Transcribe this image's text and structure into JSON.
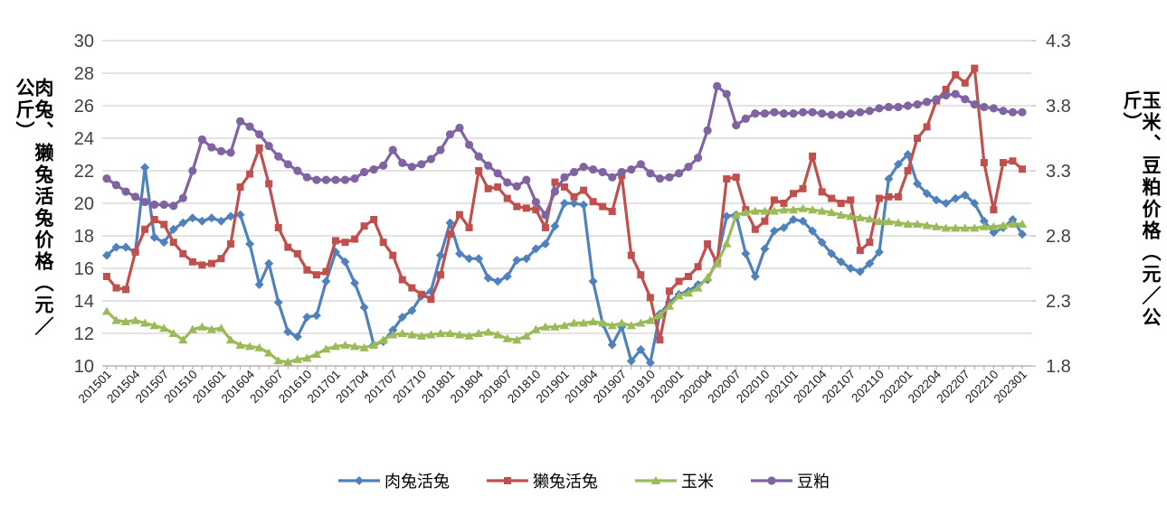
{
  "chart_data": {
    "type": "line",
    "title": "",
    "grid": true,
    "legend_position": "bottom",
    "x_tick_labels": [
      "201501",
      "201504",
      "201507",
      "201510",
      "201601",
      "201604",
      "201607",
      "201610",
      "201701",
      "201704",
      "201707",
      "201710",
      "201801",
      "201804",
      "201807",
      "201810",
      "201901",
      "201904",
      "201907",
      "201910",
      "202001",
      "202004",
      "202007",
      "202010",
      "202101",
      "202104",
      "202107",
      "202110",
      "202201",
      "202204",
      "202207",
      "202210",
      "202301"
    ],
    "left_axis": {
      "label": "肉兔、獭兔活兔价格（元／公斤）",
      "range": [
        10,
        30
      ],
      "ticks": [
        10,
        12,
        14,
        16,
        18,
        20,
        22,
        24,
        26,
        28,
        30
      ]
    },
    "right_axis": {
      "label": "玉米、豆粕价格（元／公斤）",
      "range": [
        1.8,
        4.3
      ],
      "ticks": [
        1.8,
        2.3,
        2.8,
        3.3,
        3.8,
        4.3
      ]
    },
    "colors": {
      "meat_rabbit": "#4F81BD",
      "rex_rabbit": "#C0504D",
      "corn": "#9BBB59",
      "soybean_meal": "#8064A2",
      "gridline": "#D2D2D2",
      "axis_line": "#A6A6A6",
      "tick_text": "#404040"
    },
    "series": [
      {
        "name": "肉兔活兔",
        "axis": "left",
        "color": "#4F81BD",
        "marker": "diamond",
        "values": [
          16.8,
          17.3,
          17.3,
          17.0,
          22.2,
          17.9,
          17.6,
          18.4,
          18.8,
          19.1,
          18.9,
          19.1,
          18.9,
          19.2,
          19.3,
          17.5,
          15.0,
          16.3,
          13.9,
          12.1,
          11.8,
          13.0,
          13.1,
          15.2,
          17.0,
          16.4,
          15.1,
          13.6,
          11.3,
          11.5,
          12.2,
          13.0,
          13.4,
          14.3,
          14.6,
          16.8,
          18.8,
          16.9,
          16.6,
          16.6,
          15.4,
          15.2,
          15.5,
          16.5,
          16.6,
          17.2,
          17.5,
          18.6,
          20.0,
          20.0,
          19.9,
          15.2,
          12.6,
          11.3,
          12.4,
          10.3,
          11.0,
          10.2,
          13.2,
          13.9,
          14.4,
          14.6,
          15.0,
          15.3,
          16.5,
          19.2,
          19.3,
          16.9,
          15.5,
          17.2,
          18.3,
          18.5,
          19.0,
          18.9,
          18.3,
          17.6,
          16.9,
          16.4,
          16.0,
          15.8,
          16.3,
          17.0,
          21.5,
          22.4,
          23.0,
          21.2,
          20.6,
          20.2,
          20.0,
          20.3,
          20.5,
          20.0,
          18.9,
          18.2,
          18.5,
          19.0,
          18.1
        ]
      },
      {
        "name": "獭兔活兔",
        "axis": "left",
        "color": "#C0504D",
        "marker": "square",
        "values": [
          15.5,
          14.8,
          14.7,
          17.0,
          18.4,
          19.0,
          18.7,
          17.6,
          16.9,
          16.4,
          16.2,
          16.3,
          16.6,
          17.5,
          21.0,
          21.8,
          23.4,
          21.2,
          18.5,
          17.3,
          16.9,
          15.9,
          15.6,
          15.8,
          17.7,
          17.6,
          17.8,
          18.6,
          19.0,
          17.6,
          16.8,
          15.3,
          14.8,
          14.4,
          14.1,
          15.6,
          18.1,
          19.3,
          18.5,
          22.0,
          20.9,
          21.0,
          20.3,
          19.8,
          19.7,
          19.6,
          18.5,
          21.3,
          21.0,
          20.4,
          20.8,
          20.1,
          19.8,
          19.5,
          21.7,
          16.8,
          15.6,
          14.2,
          11.6,
          14.6,
          15.2,
          15.5,
          16.1,
          17.5,
          16.3,
          21.5,
          21.6,
          19.6,
          18.4,
          18.9,
          20.2,
          20.0,
          20.6,
          20.9,
          22.9,
          20.7,
          20.3,
          20.0,
          20.2,
          17.1,
          17.6,
          20.3,
          20.4,
          20.4,
          22.0,
          24.0,
          24.7,
          26.3,
          27.0,
          27.9,
          27.4,
          28.3,
          22.5,
          19.6,
          22.5,
          22.6,
          22.1
        ]
      },
      {
        "name": "玉米",
        "axis": "right",
        "color": "#9BBB59",
        "marker": "triangle",
        "values": [
          2.22,
          2.15,
          2.14,
          2.15,
          2.13,
          2.11,
          2.09,
          2.05,
          2.0,
          2.08,
          2.1,
          2.08,
          2.09,
          2.0,
          1.96,
          1.95,
          1.94,
          1.9,
          1.84,
          1.83,
          1.85,
          1.86,
          1.89,
          1.93,
          1.95,
          1.96,
          1.95,
          1.94,
          1.96,
          2.0,
          2.04,
          2.05,
          2.04,
          2.03,
          2.04,
          2.05,
          2.05,
          2.04,
          2.03,
          2.05,
          2.06,
          2.04,
          2.01,
          2.0,
          2.03,
          2.08,
          2.1,
          2.1,
          2.11,
          2.13,
          2.13,
          2.14,
          2.13,
          2.11,
          2.13,
          2.11,
          2.13,
          2.15,
          2.19,
          2.26,
          2.34,
          2.36,
          2.4,
          2.48,
          2.59,
          2.74,
          2.96,
          2.98,
          2.99,
          2.99,
          2.99,
          3.0,
          3.0,
          3.01,
          3.0,
          2.99,
          2.98,
          2.96,
          2.95,
          2.94,
          2.93,
          2.91,
          2.91,
          2.9,
          2.89,
          2.89,
          2.88,
          2.87,
          2.86,
          2.86,
          2.86,
          2.86,
          2.87,
          2.87,
          2.88,
          2.89,
          2.89
        ]
      },
      {
        "name": "豆粕",
        "axis": "right",
        "color": "#8064A2",
        "marker": "circle",
        "values": [
          3.24,
          3.19,
          3.14,
          3.1,
          3.06,
          3.04,
          3.04,
          3.03,
          3.09,
          3.3,
          3.54,
          3.48,
          3.45,
          3.44,
          3.68,
          3.64,
          3.58,
          3.49,
          3.41,
          3.35,
          3.3,
          3.25,
          3.23,
          3.23,
          3.23,
          3.23,
          3.24,
          3.29,
          3.31,
          3.34,
          3.46,
          3.36,
          3.33,
          3.35,
          3.39,
          3.46,
          3.58,
          3.63,
          3.5,
          3.41,
          3.34,
          3.28,
          3.21,
          3.18,
          3.23,
          3.06,
          2.96,
          3.14,
          3.25,
          3.29,
          3.33,
          3.31,
          3.29,
          3.25,
          3.29,
          3.31,
          3.35,
          3.28,
          3.24,
          3.25,
          3.28,
          3.33,
          3.4,
          3.61,
          3.95,
          3.89,
          3.65,
          3.7,
          3.74,
          3.74,
          3.75,
          3.74,
          3.74,
          3.75,
          3.75,
          3.74,
          3.73,
          3.73,
          3.74,
          3.75,
          3.76,
          3.78,
          3.79,
          3.79,
          3.8,
          3.81,
          3.83,
          3.85,
          3.88,
          3.89,
          3.85,
          3.81,
          3.79,
          3.78,
          3.76,
          3.75,
          3.75
        ]
      }
    ]
  }
}
